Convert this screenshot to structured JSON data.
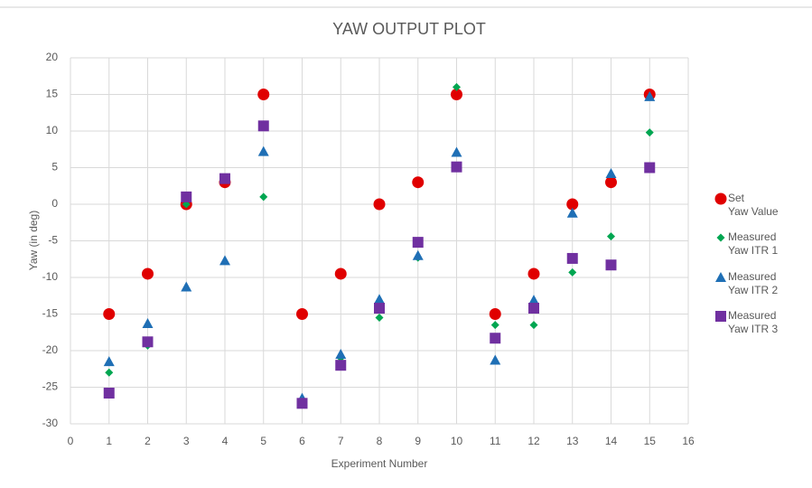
{
  "chart_data": {
    "type": "scatter",
    "title": "YAW OUTPUT PLOT",
    "x_label": "Experiment Number",
    "y_label": "Yaw (in deg)",
    "x": [
      1,
      2,
      3,
      4,
      5,
      6,
      7,
      8,
      9,
      10,
      11,
      12,
      13,
      14,
      15
    ],
    "series": [
      {
        "name": "Set Yaw Value",
        "color": "#e00000",
        "marker": "circle",
        "values": [
          -15,
          -9.5,
          0,
          3,
          15,
          -15,
          -9.5,
          0,
          3,
          15,
          -15,
          -9.5,
          0,
          3,
          15
        ]
      },
      {
        "name": "Measured Yaw ITR 1",
        "color": "#00a651",
        "marker": "diamond",
        "values": [
          -23,
          -19.3,
          0,
          3.5,
          1,
          -27,
          -21,
          -15.5,
          -7.3,
          16,
          -16.5,
          -16.5,
          -9.3,
          -4.4,
          9.8
        ]
      },
      {
        "name": "Measured Yaw ITR 2",
        "color": "#1f6fb5",
        "marker": "triangle",
        "values": [
          -21.5,
          -16.3,
          -11.3,
          -7.7,
          7.2,
          -26.5,
          -20.5,
          -13,
          -7,
          7.1,
          -21.3,
          -13.1,
          -1.2,
          4.2,
          14.7
        ]
      },
      {
        "name": "Measured Yaw ITR 3",
        "color": "#7030a0",
        "marker": "square",
        "values": [
          -25.8,
          -18.8,
          1,
          3.5,
          10.7,
          -27.2,
          -22,
          -14.2,
          -5.2,
          5.1,
          -18.3,
          -14.2,
          -7.4,
          -8.3,
          5
        ]
      }
    ],
    "xlim": [
      0,
      16
    ],
    "xticks": [
      0,
      1,
      2,
      3,
      4,
      5,
      6,
      7,
      8,
      9,
      10,
      11,
      12,
      13,
      14,
      15,
      16
    ],
    "ylim": [
      -30,
      20
    ],
    "yticks": [
      -30,
      -25,
      -20,
      -15,
      -10,
      -5,
      0,
      5,
      10,
      15,
      20
    ],
    "grid": true,
    "legend": "right"
  }
}
